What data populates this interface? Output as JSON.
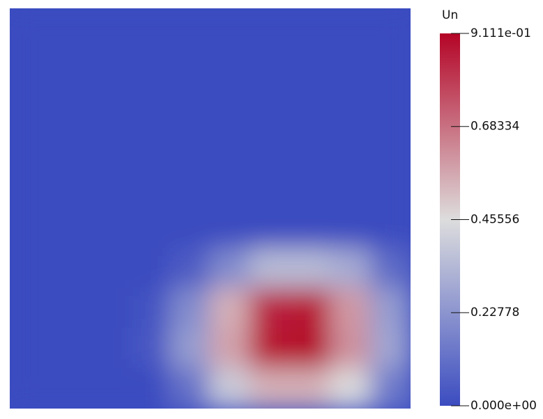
{
  "chart_data": {
    "type": "heatmap",
    "colorbar_title": "Un",
    "colormap": [
      "#3b4cc0",
      "#dddddd",
      "#b40426"
    ],
    "zlim": [
      0,
      0.9111
    ],
    "zticks": [
      {
        "value": 0,
        "label": "0.000e+00"
      },
      0.22778,
      0.45556,
      0.68334,
      {
        "value": 0.9111,
        "label": "9.111e-01"
      }
    ],
    "z": [
      [
        0,
        0,
        0,
        0,
        0,
        0,
        0,
        0,
        0,
        0
      ],
      [
        0,
        0,
        0,
        0,
        0,
        0,
        0,
        0,
        0,
        0
      ],
      [
        0,
        0,
        0,
        0,
        0,
        0,
        0,
        0,
        0,
        0
      ],
      [
        0,
        0,
        0,
        0,
        0,
        0,
        0,
        0,
        0,
        0
      ],
      [
        0,
        0,
        0,
        0,
        0,
        0,
        0,
        0,
        0,
        0
      ],
      [
        0,
        0,
        0,
        0,
        0,
        0,
        0,
        0,
        0,
        0
      ],
      [
        0,
        0,
        0,
        0,
        0.05,
        0.2,
        0.35,
        0.35,
        0.3,
        0.1
      ],
      [
        0,
        0,
        0,
        0.02,
        0.2,
        0.55,
        0.85,
        0.88,
        0.6,
        0.25
      ],
      [
        0,
        0,
        0,
        0.03,
        0.25,
        0.58,
        0.88,
        0.91,
        0.62,
        0.28
      ],
      [
        0,
        0,
        0,
        0,
        0.12,
        0.4,
        0.55,
        0.55,
        0.45,
        0.15
      ]
    ]
  }
}
